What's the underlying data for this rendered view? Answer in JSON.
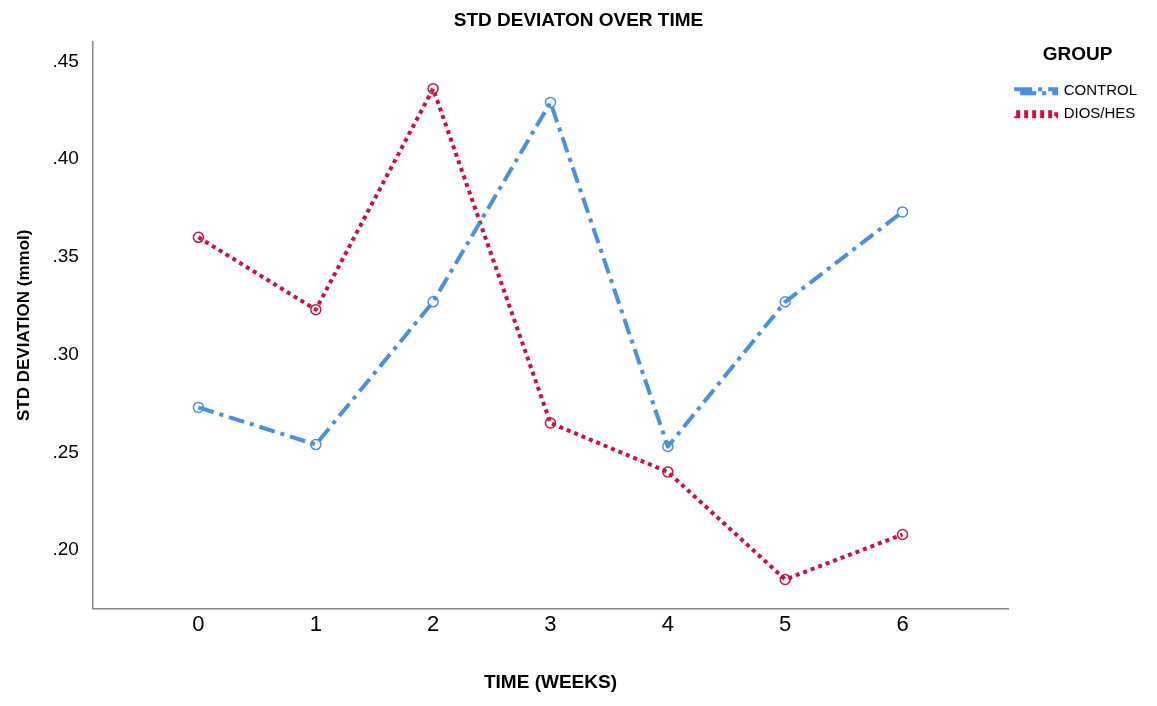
{
  "chart_data": {
    "type": "line",
    "title": "STD DEVIATON OVER TIME",
    "xlabel": "TIME (WEEKS)",
    "ylabel": "STD DEVIATION (mmol)",
    "legend_title": "GROUP",
    "x": [
      0,
      1,
      2,
      3,
      4,
      5,
      6
    ],
    "series": [
      {
        "name": "CONTROL",
        "color": "#4a90e2",
        "line_style": "dashed",
        "values": [
          0.273,
          0.254,
          0.327,
          0.429,
          0.253,
          0.327,
          0.373
        ]
      },
      {
        "name": "DIOS/HES",
        "color": "#d0103a",
        "line_style": "dotted",
        "values": [
          0.36,
          0.323,
          0.436,
          0.265,
          0.24,
          0.185,
          0.208
        ]
      }
    ],
    "xlim": [
      -0.9,
      6.9
    ],
    "xticks": [
      0,
      1,
      2,
      3,
      4,
      5,
      6
    ],
    "ylim": [
      0.17,
      0.46
    ],
    "yticks": [
      {
        "value": 0.2,
        "label": ".20"
      },
      {
        "value": 0.25,
        "label": ".25"
      },
      {
        "value": 0.3,
        "label": ".30"
      },
      {
        "value": 0.35,
        "label": ".35"
      },
      {
        "value": 0.4,
        "label": ".40"
      },
      {
        "value": 0.45,
        "label": ".45"
      }
    ],
    "grid": false,
    "legend": "top right",
    "marker": "circle"
  }
}
